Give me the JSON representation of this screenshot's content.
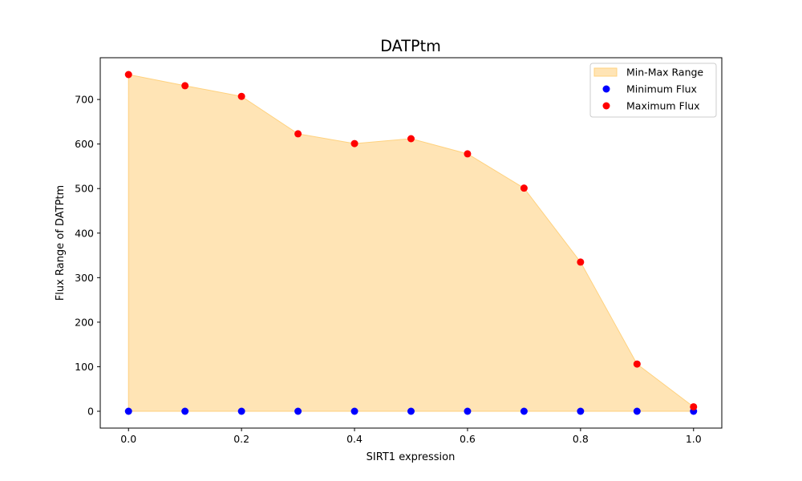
{
  "chart_data": {
    "type": "area",
    "title": "DATPtm",
    "xlabel": "SIRT1 expression",
    "ylabel": "Flux Range of DATPtm",
    "xlim": [
      -0.05,
      1.05
    ],
    "ylim": [
      -37.8,
      793.8
    ],
    "xticks": [
      0.0,
      0.2,
      0.4,
      0.6,
      0.8,
      1.0
    ],
    "xtick_labels": [
      "0.0",
      "0.2",
      "0.4",
      "0.6",
      "0.8",
      "1.0"
    ],
    "yticks": [
      0,
      100,
      200,
      300,
      400,
      500,
      600,
      700
    ],
    "ytick_labels": [
      "0",
      "100",
      "200",
      "300",
      "400",
      "500",
      "600",
      "700"
    ],
    "grid": false,
    "legend_position": "top-right",
    "x": [
      0.0,
      0.1,
      0.2,
      0.3,
      0.4,
      0.5,
      0.6,
      0.7,
      0.8,
      0.9,
      1.0
    ],
    "series": [
      {
        "name": "Min-Max Range",
        "kind": "fill_between",
        "color": "#ffe4b5",
        "edge_color": "#ffd27f"
      },
      {
        "name": "Minimum Flux",
        "kind": "scatter",
        "color": "#0000ff",
        "values": [
          0,
          0,
          0,
          0,
          0,
          0,
          0,
          0,
          0,
          0,
          0
        ]
      },
      {
        "name": "Maximum Flux",
        "kind": "scatter",
        "color": "#ff0000",
        "values": [
          756,
          731,
          707,
          623,
          601,
          612,
          578,
          501,
          335,
          106,
          10
        ]
      }
    ]
  }
}
